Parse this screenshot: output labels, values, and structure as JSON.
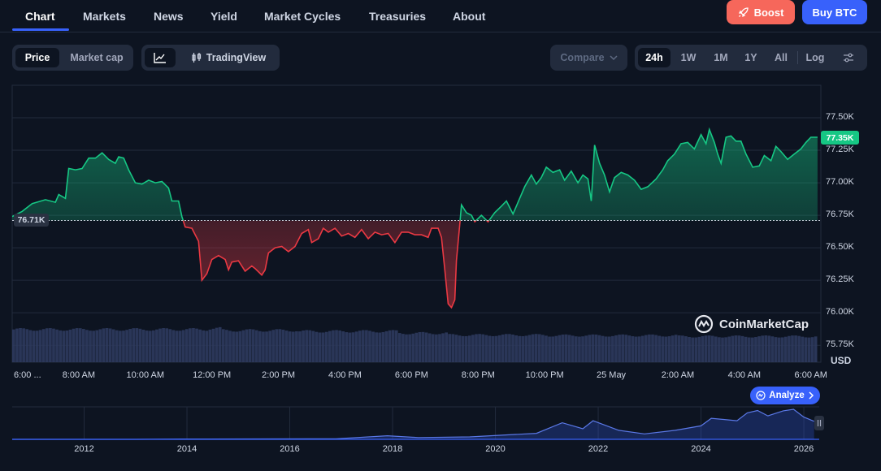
{
  "nav": {
    "tabs": [
      "Chart",
      "Markets",
      "News",
      "Yield",
      "Market Cycles",
      "Treasuries",
      "About"
    ],
    "boost_label": "Boost",
    "buy_label": "Buy BTC"
  },
  "toolbar": {
    "price_label": "Price",
    "marketcap_label": "Market cap",
    "tradingview_label": "TradingView",
    "compare_label": "Compare",
    "ranges": [
      "24h",
      "1W",
      "1M",
      "1Y",
      "All"
    ],
    "active_range": "24h",
    "log_label": "Log"
  },
  "brand": {
    "watermark": "CoinMarketCap"
  },
  "analyze_label": "Analyze",
  "colors": {
    "up": "#16c784",
    "down": "#ea3943",
    "accent": "#3861fb",
    "boost": "#f6675b"
  },
  "chart_data": {
    "type": "line",
    "currency": "USD",
    "current_price_label": "77.35K",
    "reference_price_label": "76.71K",
    "reference_price": 76710,
    "current_price": 77350,
    "ylim": [
      75620,
      77750
    ],
    "y_ticks": [
      75750,
      76000,
      76250,
      76500,
      76750,
      77000,
      77250,
      77500
    ],
    "y_tick_labels": [
      "75.75K",
      "76.00K",
      "76.25K",
      "76.50K",
      "76.75K",
      "77.00K",
      "77.25K",
      "77.50K"
    ],
    "x_ticks": [
      "6:00 ...",
      "8:00 AM",
      "10:00 AM",
      "12:00 PM",
      "2:00 PM",
      "4:00 PM",
      "6:00 PM",
      "8:00 PM",
      "10:00 PM",
      "25 May",
      "2:00 AM",
      "4:00 AM",
      "6:00 AM"
    ],
    "x_tick_hours": [
      0,
      2,
      4,
      6,
      8,
      10,
      12,
      14,
      16,
      18,
      20,
      22,
      24
    ],
    "xlim_hours": [
      0,
      24.3
    ],
    "price_series": [
      [
        0,
        76740
      ],
      [
        0.3,
        76780
      ],
      [
        0.6,
        76840
      ],
      [
        1.0,
        76870
      ],
      [
        1.3,
        76850
      ],
      [
        1.4,
        76910
      ],
      [
        1.6,
        76880
      ],
      [
        1.7,
        77110
      ],
      [
        1.9,
        77100
      ],
      [
        2.1,
        77110
      ],
      [
        2.3,
        77190
      ],
      [
        2.5,
        77190
      ],
      [
        2.7,
        77230
      ],
      [
        2.9,
        77180
      ],
      [
        3.1,
        77150
      ],
      [
        3.2,
        77200
      ],
      [
        3.35,
        77190
      ],
      [
        3.5,
        77100
      ],
      [
        3.7,
        77000
      ],
      [
        3.9,
        76990
      ],
      [
        4.1,
        77020
      ],
      [
        4.3,
        77000
      ],
      [
        4.5,
        77010
      ],
      [
        4.7,
        76960
      ],
      [
        4.8,
        76860
      ],
      [
        5.0,
        76860
      ],
      [
        5.1,
        76740
      ],
      [
        5.2,
        76660
      ],
      [
        5.4,
        76650
      ],
      [
        5.6,
        76550
      ],
      [
        5.7,
        76250
      ],
      [
        5.85,
        76300
      ],
      [
        6.0,
        76410
      ],
      [
        6.2,
        76440
      ],
      [
        6.4,
        76410
      ],
      [
        6.5,
        76330
      ],
      [
        6.6,
        76390
      ],
      [
        6.8,
        76400
      ],
      [
        7.0,
        76320
      ],
      [
        7.2,
        76360
      ],
      [
        7.3,
        76340
      ],
      [
        7.5,
        76290
      ],
      [
        7.6,
        76330
      ],
      [
        7.7,
        76460
      ],
      [
        7.9,
        76500
      ],
      [
        8.1,
        76510
      ],
      [
        8.3,
        76470
      ],
      [
        8.5,
        76510
      ],
      [
        8.7,
        76610
      ],
      [
        8.9,
        76640
      ],
      [
        9.0,
        76540
      ],
      [
        9.2,
        76570
      ],
      [
        9.35,
        76650
      ],
      [
        9.5,
        76620
      ],
      [
        9.7,
        76650
      ],
      [
        9.9,
        76590
      ],
      [
        10.1,
        76610
      ],
      [
        10.3,
        76580
      ],
      [
        10.5,
        76640
      ],
      [
        10.7,
        76570
      ],
      [
        10.9,
        76620
      ],
      [
        11.1,
        76600
      ],
      [
        11.3,
        76610
      ],
      [
        11.5,
        76540
      ],
      [
        11.7,
        76620
      ],
      [
        11.9,
        76620
      ],
      [
        12.1,
        76600
      ],
      [
        12.3,
        76600
      ],
      [
        12.5,
        76580
      ],
      [
        12.6,
        76650
      ],
      [
        12.8,
        76650
      ],
      [
        12.9,
        76580
      ],
      [
        13.0,
        76330
      ],
      [
        13.1,
        76070
      ],
      [
        13.2,
        76040
      ],
      [
        13.3,
        76100
      ],
      [
        13.35,
        76400
      ],
      [
        13.45,
        76680
      ],
      [
        13.5,
        76830
      ],
      [
        13.65,
        76770
      ],
      [
        13.8,
        76750
      ],
      [
        13.9,
        76700
      ],
      [
        14.1,
        76750
      ],
      [
        14.3,
        76700
      ],
      [
        14.5,
        76770
      ],
      [
        14.7,
        76820
      ],
      [
        14.85,
        76860
      ],
      [
        15.05,
        76760
      ],
      [
        15.2,
        76850
      ],
      [
        15.4,
        76970
      ],
      [
        15.6,
        77060
      ],
      [
        15.75,
        76990
      ],
      [
        15.9,
        77040
      ],
      [
        16.05,
        77120
      ],
      [
        16.25,
        77080
      ],
      [
        16.45,
        77100
      ],
      [
        16.6,
        77020
      ],
      [
        16.8,
        77090
      ],
      [
        17.0,
        77000
      ],
      [
        17.15,
        77060
      ],
      [
        17.3,
        77030
      ],
      [
        17.4,
        76860
      ],
      [
        17.5,
        77290
      ],
      [
        17.65,
        77150
      ],
      [
        17.8,
        77060
      ],
      [
        17.95,
        76930
      ],
      [
        18.1,
        77040
      ],
      [
        18.3,
        77080
      ],
      [
        18.5,
        77060
      ],
      [
        18.7,
        77020
      ],
      [
        18.9,
        76950
      ],
      [
        19.1,
        76970
      ],
      [
        19.35,
        77030
      ],
      [
        19.55,
        77100
      ],
      [
        19.7,
        77170
      ],
      [
        19.9,
        77220
      ],
      [
        20.1,
        77300
      ],
      [
        20.3,
        77310
      ],
      [
        20.5,
        77260
      ],
      [
        20.7,
        77370
      ],
      [
        20.85,
        77300
      ],
      [
        20.95,
        77410
      ],
      [
        21.1,
        77310
      ],
      [
        21.2,
        77220
      ],
      [
        21.3,
        77150
      ],
      [
        21.45,
        77350
      ],
      [
        21.6,
        77360
      ],
      [
        21.75,
        77320
      ],
      [
        21.9,
        77320
      ],
      [
        22.05,
        77220
      ],
      [
        22.25,
        77120
      ],
      [
        22.45,
        77130
      ],
      [
        22.6,
        77210
      ],
      [
        22.8,
        77170
      ],
      [
        22.95,
        77280
      ],
      [
        23.1,
        77240
      ],
      [
        23.3,
        77180
      ],
      [
        23.5,
        77220
      ],
      [
        23.7,
        77260
      ],
      [
        23.85,
        77310
      ],
      [
        24.0,
        77350
      ],
      [
        24.2,
        77350
      ]
    ],
    "volume_series": [
      [
        0,
        0.7
      ],
      [
        5.8,
        0.72
      ],
      [
        6.2,
        0.68
      ],
      [
        8.5,
        0.66
      ],
      [
        11.5,
        0.62
      ],
      [
        13.0,
        0.58
      ],
      [
        16.0,
        0.57
      ],
      [
        20.0,
        0.55
      ],
      [
        24.2,
        0.58
      ]
    ],
    "overview": {
      "x_ticks": [
        2012,
        2014,
        2016,
        2018,
        2020,
        2022,
        2024,
        2026
      ],
      "xlim": [
        2010.6,
        2026.3
      ],
      "series": [
        [
          2010.6,
          0.0
        ],
        [
          2013.0,
          0.0
        ],
        [
          2013.9,
          0.01
        ],
        [
          2016.9,
          0.02
        ],
        [
          2017.9,
          0.12
        ],
        [
          2018.5,
          0.06
        ],
        [
          2019.5,
          0.08
        ],
        [
          2020.8,
          0.2
        ],
        [
          2021.3,
          0.55
        ],
        [
          2021.7,
          0.35
        ],
        [
          2021.9,
          0.62
        ],
        [
          2022.4,
          0.3
        ],
        [
          2022.9,
          0.18
        ],
        [
          2023.5,
          0.3
        ],
        [
          2024.0,
          0.45
        ],
        [
          2024.2,
          0.7
        ],
        [
          2024.7,
          0.62
        ],
        [
          2024.9,
          0.88
        ],
        [
          2025.1,
          0.96
        ],
        [
          2025.3,
          0.78
        ],
        [
          2025.6,
          0.95
        ],
        [
          2025.8,
          1.0
        ],
        [
          2026.0,
          0.74
        ],
        [
          2026.2,
          0.6
        ]
      ]
    }
  }
}
